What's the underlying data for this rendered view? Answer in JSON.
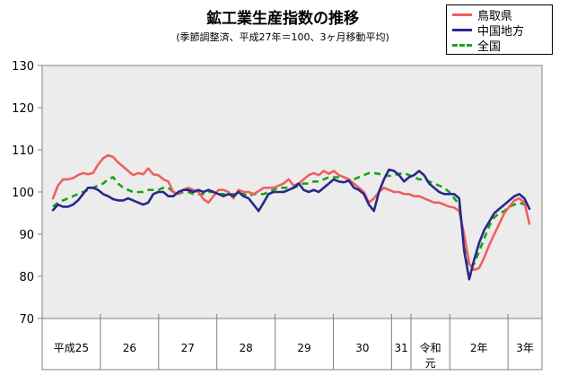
{
  "chart_data": {
    "type": "line",
    "title": "鉱工業生産指数の推移",
    "subtitle": "(季節調整済、平成27年＝100、3ヶ月移動平均)",
    "xlabel": "",
    "ylabel": "",
    "ylim": [
      70,
      130
    ],
    "yticks": [
      70,
      80,
      90,
      100,
      110,
      120,
      130
    ],
    "grid": false,
    "legend": "top-right",
    "year_labels": [
      {
        "label": "平成25",
        "months": 12
      },
      {
        "label": "26",
        "months": 12
      },
      {
        "label": "27",
        "months": 12
      },
      {
        "label": "28",
        "months": 12
      },
      {
        "label": "29",
        "months": 12
      },
      {
        "label": "30",
        "months": 12
      },
      {
        "label": "31",
        "months": 4
      },
      {
        "label": "令和元",
        "months": 8
      },
      {
        "label": "2年",
        "months": 12
      },
      {
        "label": "3年",
        "months": 7
      }
    ],
    "series": [
      {
        "name": "鳥取県",
        "color": "#f06060",
        "dash": "solid",
        "values": [
          98.5,
          101.5,
          103.0,
          103.0,
          103.3,
          104.0,
          104.5,
          104.2,
          104.5,
          106.5,
          108.0,
          108.7,
          108.3,
          107.0,
          106.0,
          105.0,
          104.0,
          104.5,
          104.2,
          105.6,
          104.2,
          104.0,
          103.0,
          102.5,
          100.0,
          99.5,
          100.5,
          101.0,
          100.5,
          100.0,
          98.3,
          97.5,
          99.0,
          100.5,
          100.5,
          100.0,
          98.5,
          100.5,
          100.0,
          100.0,
          99.5,
          100.2,
          101.0,
          101.0,
          101.0,
          101.5,
          102.0,
          103.0,
          101.5,
          102.0,
          103.0,
          104.0,
          104.5,
          104.0,
          105.0,
          104.3,
          105.0,
          104.0,
          103.5,
          103.0,
          102.0,
          101.0,
          100.0,
          97.5,
          98.5,
          100.0,
          101.0,
          100.5,
          100.0,
          100.0,
          99.5,
          99.5,
          99.0,
          99.0,
          98.5,
          98.0,
          97.5,
          97.5,
          97.0,
          96.5,
          96.3,
          95.5,
          90.0,
          83.0,
          81.5,
          82.0,
          84.5,
          87.5,
          90.0,
          92.5,
          95.0,
          96.5,
          98.0,
          98.5,
          97.5,
          92.5
        ]
      },
      {
        "name": "中国地方",
        "color": "#28288c",
        "dash": "solid",
        "values": [
          95.7,
          97.0,
          96.5,
          96.5,
          97.0,
          98.0,
          99.5,
          101.0,
          101.0,
          100.5,
          99.5,
          99.0,
          98.3,
          98.0,
          98.0,
          98.5,
          98.0,
          97.5,
          97.0,
          97.5,
          99.5,
          100.0,
          100.0,
          99.0,
          99.0,
          100.0,
          100.5,
          100.5,
          100.0,
          100.5,
          100.0,
          100.5,
          100.0,
          99.5,
          99.0,
          99.5,
          99.0,
          100.0,
          99.0,
          98.5,
          97.0,
          95.5,
          97.5,
          99.5,
          100.0,
          100.0,
          100.0,
          100.5,
          101.0,
          102.0,
          100.5,
          100.0,
          100.5,
          100.0,
          101.0,
          102.0,
          103.0,
          102.5,
          102.3,
          102.7,
          101.0,
          100.5,
          99.5,
          97.0,
          95.5,
          100.0,
          103.0,
          105.3,
          105.0,
          104.0,
          102.5,
          103.5,
          104.0,
          105.0,
          104.0,
          102.0,
          101.0,
          100.0,
          99.5,
          99.5,
          99.5,
          98.5,
          86.0,
          79.3,
          84.0,
          88.0,
          91.0,
          93.0,
          95.0,
          96.0,
          97.0,
          98.0,
          99.0,
          99.5,
          98.5,
          96.0
        ]
      },
      {
        "name": "全国",
        "color": "#18a418",
        "dash": "dashed",
        "values": [
          96.5,
          97.5,
          98.0,
          98.5,
          99.0,
          99.5,
          100.0,
          100.5,
          101.0,
          101.5,
          102.0,
          103.0,
          103.5,
          102.0,
          101.0,
          100.5,
          100.0,
          100.0,
          100.0,
          100.5,
          100.5,
          100.5,
          101.0,
          101.0,
          100.0,
          99.5,
          100.0,
          100.0,
          99.5,
          99.5,
          99.5,
          100.0,
          100.0,
          99.5,
          99.5,
          99.5,
          99.5,
          99.5,
          99.5,
          99.0,
          99.5,
          99.5,
          99.5,
          100.0,
          100.5,
          101.0,
          101.0,
          101.0,
          101.0,
          101.5,
          102.0,
          102.0,
          102.5,
          102.5,
          103.0,
          103.5,
          103.5,
          103.5,
          103.5,
          103.0,
          103.0,
          103.5,
          104.0,
          104.5,
          104.5,
          104.3,
          104.0,
          103.8,
          104.0,
          104.3,
          104.5,
          104.0,
          103.5,
          103.0,
          103.0,
          102.5,
          102.0,
          101.5,
          101.0,
          100.0,
          98.5,
          97.0,
          88.0,
          82.0,
          83.0,
          86.0,
          89.0,
          92.0,
          94.0,
          95.0,
          95.5,
          96.5,
          97.0,
          97.5,
          97.0,
          97.5
        ]
      }
    ]
  }
}
